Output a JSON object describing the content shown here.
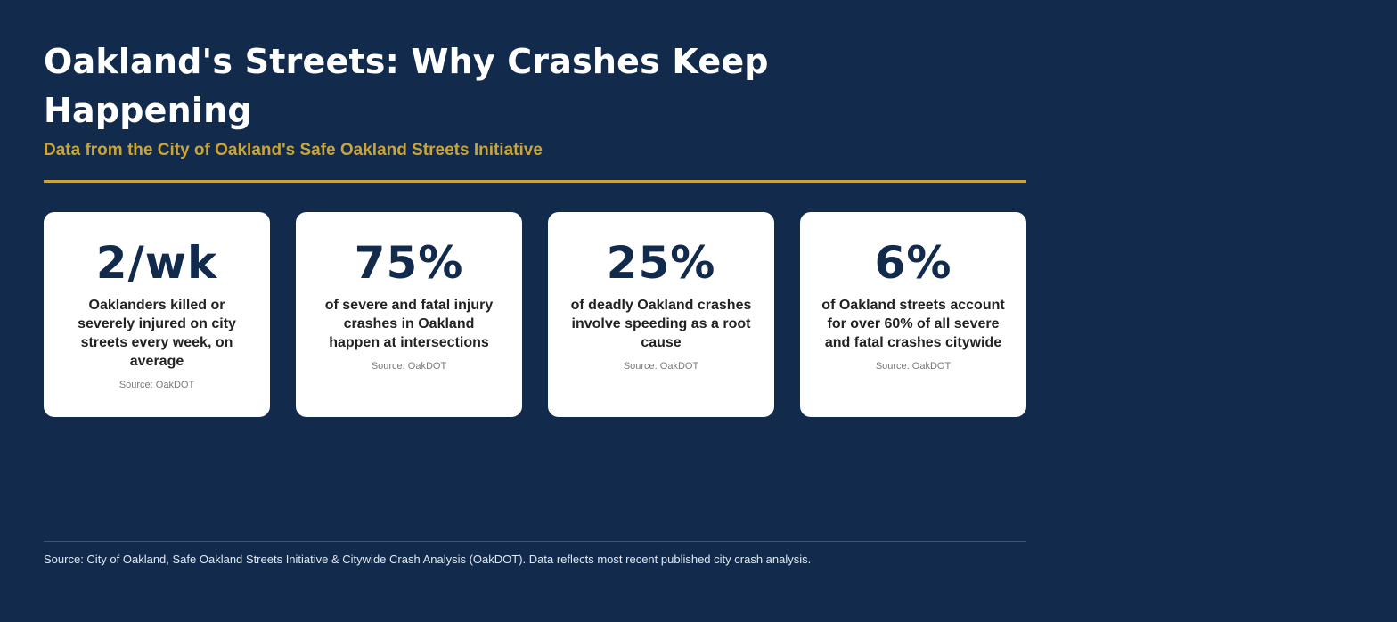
{
  "header": {
    "title": "Oakland's Streets: Why Crashes Keep Happening",
    "subtitle": "Data from the City of Oakland's Safe Oakland Streets Initiative"
  },
  "stats": [
    {
      "value": "2/wk",
      "description": "Oaklanders killed or severely injured on city streets every week, on average",
      "source": "Source: OakDOT"
    },
    {
      "value": "75%",
      "description": "of severe and fatal injury crashes in Oakland happen at intersections",
      "source": "Source: OakDOT"
    },
    {
      "value": "25%",
      "description": "of deadly Oakland crashes involve speeding as a root cause",
      "source": "Source: OakDOT"
    },
    {
      "value": "6%",
      "description": "of Oakland streets account for over 60% of all severe and fatal crashes citywide",
      "source": "Source: OakDOT"
    }
  ],
  "footer": {
    "source": "Source: City of Oakland, Safe Oakland Streets Initiative & Citywide Crash Analysis (OakDOT). Data reflects most recent published city crash analysis."
  },
  "colors": {
    "background": "#122a4c",
    "accent": "#c9a43a",
    "card": "#ffffff",
    "stat": "#122a4c"
  }
}
